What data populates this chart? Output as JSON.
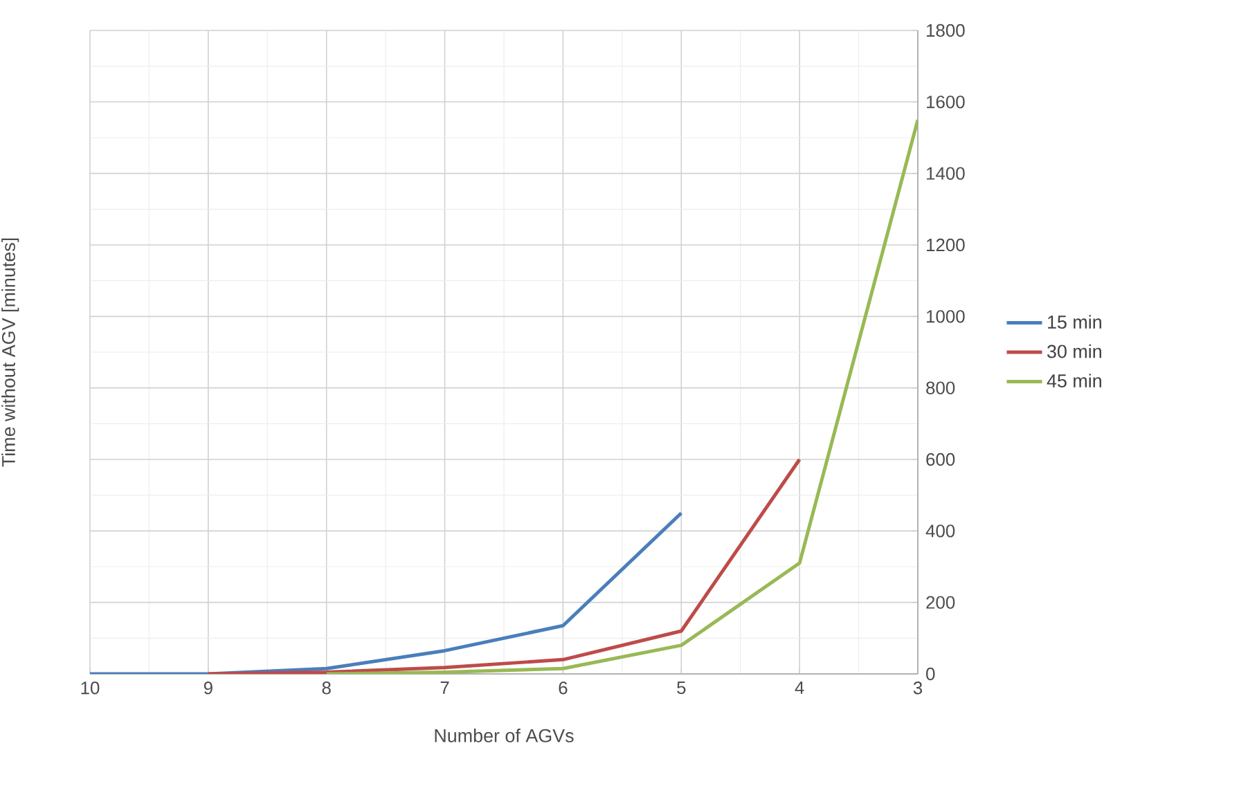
{
  "chart_data": {
    "type": "line",
    "xlabel": "Number of AGVs",
    "ylabel": "Time without AGV [minutes]",
    "x": [
      10,
      9,
      8,
      7,
      6,
      5,
      4,
      3
    ],
    "xlim": [
      10,
      3
    ],
    "xticks": [
      10,
      9,
      8,
      7,
      6,
      5,
      4,
      3
    ],
    "ylim": [
      0,
      1800
    ],
    "yticks": [
      0,
      200,
      400,
      600,
      800,
      1000,
      1200,
      1400,
      1600,
      1800
    ],
    "grid": true,
    "legend": "right",
    "marker": "none",
    "line_style": "solid",
    "series": [
      {
        "name": "15 min",
        "color": "#4a7ebb",
        "values": [
          0,
          0,
          15,
          65,
          135,
          450,
          null,
          null
        ]
      },
      {
        "name": "30 min",
        "color": "#be4b48",
        "values": [
          null,
          0,
          5,
          18,
          40,
          120,
          600,
          null
        ]
      },
      {
        "name": "45 min",
        "color": "#98b954",
        "values": [
          null,
          null,
          0,
          5,
          15,
          80,
          310,
          1550
        ]
      }
    ]
  }
}
